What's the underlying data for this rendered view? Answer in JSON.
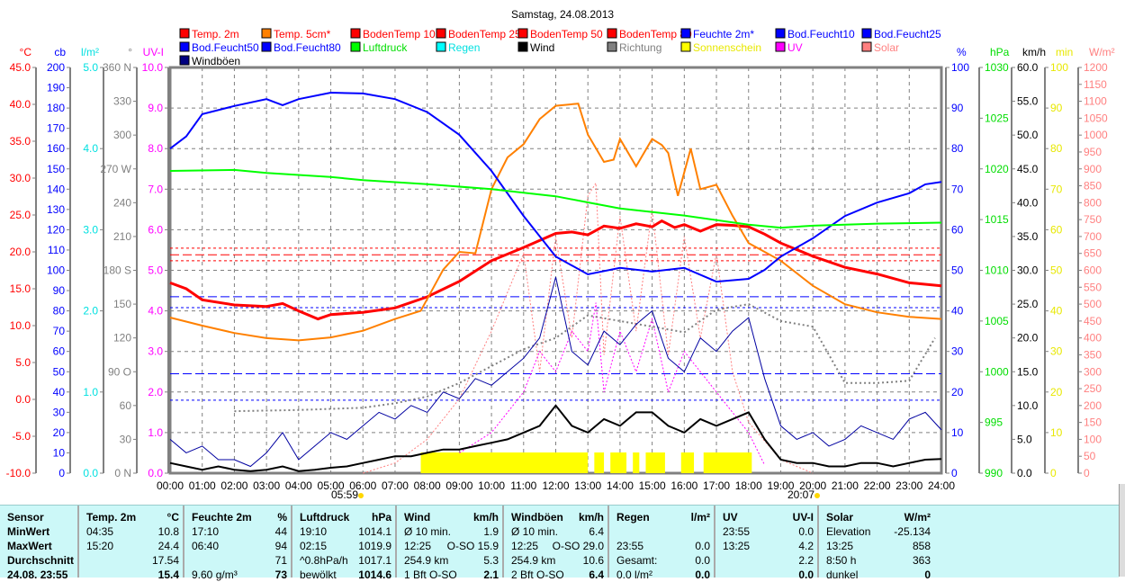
{
  "chart_data": {
    "type": "line",
    "title": "Samstag, 24.08.2013",
    "x_ticks": [
      "00:00",
      "01:00",
      "02:00",
      "03:00",
      "04:00",
      "05:00",
      "06:00",
      "07:00",
      "08:00",
      "09:00",
      "10:00",
      "11:00",
      "12:00",
      "13:00",
      "14:00",
      "15:00",
      "16:00",
      "17:00",
      "18:00",
      "19:00",
      "20:00",
      "21:00",
      "22:00",
      "23:00",
      "24:00"
    ],
    "sunrise": "05:59",
    "sunset": "20:07",
    "legend": [
      {
        "label": "Temp. 2m",
        "color": "#ff0000",
        "text": "#ff0000"
      },
      {
        "label": "Temp. 5cm*",
        "color": "#ff8000",
        "text": "#ff0000"
      },
      {
        "label": "BodenTemp 10",
        "color": "#ff0000",
        "text": "#ff0000"
      },
      {
        "label": "BodenTemp 25",
        "color": "#ff0000",
        "text": "#ff0000"
      },
      {
        "label": "BodenTemp 50",
        "color": "#ff0000",
        "text": "#ff0000"
      },
      {
        "label": "BodenTemp 80",
        "color": "#ff0000",
        "text": "#ff0000"
      },
      {
        "label": "Feuchte 2m*",
        "color": "#0000ff",
        "text": "#0000ff"
      },
      {
        "label": "Bod.Feucht10",
        "color": "#0000ff",
        "text": "#0000ff"
      },
      {
        "label": "Bod.Feucht25",
        "color": "#0000ff",
        "text": "#0000ff"
      },
      {
        "label": "Bod.Feucht50",
        "color": "#0000ff",
        "text": "#0000ff"
      },
      {
        "label": "Bod.Feucht80",
        "color": "#0000ff",
        "text": "#0000ff"
      },
      {
        "label": "Luftdruck",
        "color": "#00ff00",
        "text": "#00dd00"
      },
      {
        "label": "Regen",
        "color": "#00ffff",
        "text": "#00e0e0"
      },
      {
        "label": "Wind",
        "color": "#000000",
        "text": "#000000"
      },
      {
        "label": "Richtung",
        "color": "#808080",
        "text": "#808080"
      },
      {
        "label": "Sonnenschein",
        "color": "#ffff00",
        "text": "#e8e800"
      },
      {
        "label": "UV",
        "color": "#ff00ff",
        "text": "#ff00ff"
      },
      {
        "label": "Solar",
        "color": "#ff8080",
        "text": "#ff8080"
      },
      {
        "label": "Windböen",
        "color": "#000080",
        "text": "#000000"
      }
    ],
    "axes_left": [
      {
        "unit": "°C",
        "color": "#ff0000",
        "min": -10,
        "max": 45,
        "ticks": [
          "45.0",
          "40.0",
          "35.0",
          "30.0",
          "25.0",
          "20.0",
          "15.0",
          "10.0",
          "5.0",
          "0.0",
          "-5.0",
          "-10.0"
        ]
      },
      {
        "unit": "cb",
        "color": "#0000ff",
        "min": 0,
        "max": 200,
        "ticks": [
          "200",
          "190",
          "180",
          "170",
          "160",
          "150",
          "140",
          "130",
          "120",
          "110",
          "100",
          "90",
          "80",
          "70",
          "60",
          "50",
          "40",
          "30",
          "20",
          "10",
          "0"
        ]
      },
      {
        "unit": "l/m²",
        "color": "#00e0e0",
        "min": 0,
        "max": 5,
        "ticks": [
          "5.0",
          "4.0",
          "3.0",
          "2.0",
          "1.0",
          "0.0"
        ]
      },
      {
        "unit": "°",
        "color": "#808080",
        "min": 0,
        "max": 360,
        "ticks": [
          "360 N",
          "330",
          "300",
          "270 W",
          "240",
          "210",
          "180 S",
          "150",
          "120",
          "90  O",
          "60",
          "30",
          "0  N"
        ]
      },
      {
        "unit": "UV-I",
        "color": "#ff00ff",
        "min": 0,
        "max": 10,
        "ticks": [
          "10.0",
          "9.0",
          "8.0",
          "7.0",
          "6.0",
          "5.0",
          "4.0",
          "3.0",
          "2.0",
          "1.0",
          "0.0"
        ]
      }
    ],
    "axes_right": [
      {
        "unit": "%",
        "color": "#0000ff",
        "min": 0,
        "max": 100,
        "ticks": [
          "100",
          "90",
          "80",
          "70",
          "60",
          "50",
          "40",
          "30",
          "20",
          "10",
          "0"
        ]
      },
      {
        "unit": "hPa",
        "color": "#00dd00",
        "min": 990,
        "max": 1030,
        "ticks": [
          "1030",
          "1025",
          "1020",
          "1015",
          "1010",
          "1005",
          "1000",
          "995",
          "990"
        ]
      },
      {
        "unit": "km/h",
        "color": "#000000",
        "min": 0,
        "max": 60,
        "ticks": [
          "60.0",
          "55.0",
          "50.0",
          "45.0",
          "40.0",
          "35.0",
          "30.0",
          "25.0",
          "20.0",
          "15.0",
          "10.0",
          "5.0",
          "0.0"
        ]
      },
      {
        "unit": "min",
        "color": "#e8e800",
        "min": 0,
        "max": 100,
        "ticks": [
          "100",
          "90",
          "80",
          "70",
          "60",
          "50",
          "40",
          "30",
          "20",
          "10",
          "0"
        ]
      },
      {
        "unit": "W/m²",
        "color": "#ff8080",
        "min": 0,
        "max": 1200,
        "ticks": [
          "1200",
          "1150",
          "1100",
          "1050",
          "1000",
          "950",
          "900",
          "850",
          "800",
          "750",
          "700",
          "650",
          "600",
          "550",
          "500",
          "450",
          "400",
          "350",
          "300",
          "250",
          "200",
          "150",
          "100",
          "50",
          "0"
        ]
      }
    ],
    "series": [
      {
        "name": "Temp. 2m",
        "axis": "°C",
        "color": "#ff0000",
        "width": 3,
        "x": [
          0,
          0.5,
          1,
          2,
          3,
          3.5,
          4,
          4.6,
          5,
          6,
          7,
          8,
          9,
          10,
          11,
          12,
          12.5,
          13,
          13.5,
          14,
          14.5,
          15,
          15.3,
          15.7,
          16,
          16.5,
          17,
          17.5,
          18,
          18.5,
          19,
          20,
          21,
          22,
          23,
          24
        ],
        "y": [
          15.8,
          15,
          13.5,
          12.8,
          12.6,
          13,
          12,
          10.9,
          11.5,
          11.8,
          12.4,
          13.9,
          16,
          18.8,
          20.6,
          22.5,
          22.7,
          22.3,
          23.5,
          23.2,
          23.8,
          23.4,
          24.2,
          23.3,
          23.7,
          22.8,
          23.7,
          23.6,
          23.4,
          22.4,
          21.2,
          19.4,
          17.9,
          17,
          15.8,
          15.4
        ]
      },
      {
        "name": "Temp. 5cm*",
        "axis": "°C",
        "color": "#ff8000",
        "width": 2,
        "x": [
          0,
          1,
          2,
          3,
          4,
          5,
          6,
          7,
          7.8,
          8.5,
          9,
          9.5,
          10,
          10.5,
          11,
          11.5,
          12,
          12.7,
          13,
          13.5,
          13.8,
          14,
          14.5,
          15,
          15.3,
          15.5,
          15.8,
          16.2,
          16.5,
          17,
          17.5,
          18,
          19,
          20,
          21,
          22,
          23,
          24
        ],
        "y": [
          11.1,
          10,
          9,
          8.3,
          8,
          8.4,
          9.3,
          10.9,
          12,
          17.6,
          20,
          19.8,
          28.5,
          32.8,
          34.6,
          38,
          39.8,
          40.1,
          35.9,
          32.2,
          32.5,
          35.3,
          31.6,
          35.3,
          34.5,
          33.4,
          27.6,
          34,
          28.5,
          29.1,
          24.9,
          21.2,
          18.8,
          15.4,
          12.9,
          11.8,
          11.2,
          10.9
        ]
      },
      {
        "name": "Feuchte 2m*",
        "axis": "%",
        "color": "#0000ff",
        "width": 2,
        "x": [
          0,
          0.5,
          1,
          2,
          3,
          3.5,
          4,
          5,
          6,
          7,
          8,
          9,
          10,
          11,
          12,
          13,
          14,
          15,
          16,
          17,
          18,
          18.5,
          19,
          20,
          21,
          22,
          23,
          23.5,
          24
        ],
        "y": [
          80,
          83,
          88.5,
          90.5,
          92.2,
          90.7,
          92.2,
          93.8,
          93.6,
          92.2,
          89,
          83.4,
          74.5,
          63.4,
          53.4,
          49,
          50.6,
          49.7,
          50.6,
          47.2,
          47.9,
          50.1,
          53.4,
          57.9,
          63.4,
          66.7,
          69,
          71.2,
          71.8
        ]
      },
      {
        "name": "Luftdruck",
        "axis": "hPa",
        "color": "#00ff00",
        "width": 2,
        "x": [
          0,
          2,
          3,
          5,
          6,
          8,
          10,
          12,
          13,
          14,
          16,
          18,
          19,
          20,
          21,
          22,
          24
        ],
        "y": [
          1019.8,
          1019.9,
          1019.6,
          1019.2,
          1018.9,
          1018.5,
          1018,
          1017.3,
          1016.7,
          1016.1,
          1015.4,
          1014.5,
          1014.2,
          1014.4,
          1014.5,
          1014.6,
          1014.7
        ]
      }
    ],
    "wind_kmh": [
      1.5,
      1,
      0.5,
      1,
      0.5,
      0.3,
      0.5,
      1,
      0.3,
      0.5,
      0.8,
      1,
      1.5,
      2,
      2.5,
      2.5,
      3,
      3.5,
      3.5,
      4,
      4.5,
      5,
      6,
      7,
      10,
      7,
      6,
      8,
      7,
      9,
      9,
      7,
      6,
      8,
      7,
      8,
      9,
      5,
      2,
      1.5,
      1.5,
      1,
      1,
      1.5,
      1.5,
      1,
      1.5,
      2,
      2.1
    ],
    "gust_kmh": [
      5,
      3,
      4,
      2,
      2,
      1,
      3,
      6,
      2,
      4,
      6,
      5,
      7,
      9,
      8,
      10,
      9,
      12,
      11,
      14,
      13,
      15,
      17,
      20,
      29,
      18,
      16,
      21,
      19,
      22,
      24,
      17,
      15,
      20,
      18,
      21,
      23,
      14,
      7,
      5,
      6,
      4,
      5,
      7,
      6,
      5,
      8,
      9,
      6.4
    ],
    "direction_deg": {
      "x": [
        2,
        4,
        6,
        7,
        8,
        9,
        10,
        11,
        12,
        13,
        14,
        15,
        16,
        17,
        18,
        19,
        20,
        21,
        22,
        23,
        23.8
      ],
      "y": [
        55,
        56,
        58,
        62,
        68,
        80,
        95,
        110,
        120,
        140,
        135,
        130,
        125,
        145,
        150,
        135,
        130,
        80,
        80,
        82,
        120
      ]
    },
    "uv_index": {
      "x": [
        9,
        10,
        11,
        11.5,
        12,
        12.5,
        13,
        13.25,
        13.5,
        14,
        14.5,
        15,
        15.5,
        16,
        16.5,
        17,
        17.5,
        18,
        18.5
      ],
      "y": [
        0.5,
        1,
        2,
        3,
        2.5,
        3.5,
        3,
        4.2,
        2,
        3.5,
        2.5,
        3.8,
        2,
        3,
        2.5,
        2,
        1.5,
        1,
        0.2
      ]
    },
    "solar_wm2": {
      "x": [
        6,
        7,
        8,
        9,
        10,
        11,
        11.5,
        12,
        12.5,
        13,
        13.25,
        13.5,
        14,
        14.5,
        15,
        15.5,
        16,
        16.5,
        17,
        17.5,
        18,
        19,
        20
      ],
      "y": [
        0,
        30,
        100,
        220,
        420,
        650,
        300,
        700,
        400,
        820,
        858,
        350,
        760,
        420,
        780,
        350,
        700,
        400,
        650,
        300,
        150,
        40,
        0
      ]
    },
    "sunshine_segments": [
      [
        7.8,
        13.0
      ],
      [
        13.2,
        13.5
      ],
      [
        13.7,
        14.2
      ],
      [
        14.4,
        14.6
      ],
      [
        14.8,
        15.4
      ],
      [
        15.9,
        16.3
      ],
      [
        16.6,
        18.1
      ]
    ],
    "reference_lines": [
      {
        "name": "BodenTemp 10",
        "axis": "°C",
        "value": 20.5,
        "color": "#ff0000"
      },
      {
        "name": "BodenTemp 25",
        "axis": "°C",
        "value": 19.6,
        "color": "#ff0000"
      },
      {
        "name": "BodenTemp 50",
        "axis": "°C",
        "value": 18.8,
        "color": "#ff0000"
      },
      {
        "name": "Bod.Feucht10",
        "axis": "cb",
        "value": 87,
        "color": "#0000ff"
      },
      {
        "name": "Bod.Feucht25",
        "axis": "cb",
        "value": 81.6,
        "color": "#0000ff"
      },
      {
        "name": "Bod.Feucht50",
        "axis": "cb",
        "value": 49,
        "color": "#0000ff"
      },
      {
        "name": "Bod.Feucht80",
        "axis": "cb",
        "value": 36,
        "color": "#0000ff"
      }
    ]
  },
  "table": {
    "headers": [
      [
        "Sensor",
        ""
      ],
      [
        "Temp. 2m",
        "°C"
      ],
      [
        "Feuchte 2m",
        "%"
      ],
      [
        "Luftdruck",
        "hPa"
      ],
      [
        "Wind",
        "km/h"
      ],
      [
        "Windböen",
        "km/h"
      ],
      [
        "Regen",
        "l/m²"
      ],
      [
        "UV",
        "UV-I"
      ],
      [
        "Solar",
        "W/m²"
      ]
    ],
    "rows": [
      {
        "label": "MinWert",
        "cells": [
          [
            "04:35",
            "10.8"
          ],
          [
            "17:10",
            "44"
          ],
          [
            "19:10",
            "1014.1"
          ],
          [
            "Ø 10 min.",
            "1.9"
          ],
          [
            "Ø 10 min.",
            "6.4"
          ],
          [
            "",
            ""
          ],
          [
            "23:55",
            "0.0"
          ],
          [
            "Elevation",
            "-25.134"
          ]
        ]
      },
      {
        "label": "MaxWert",
        "cells": [
          [
            "15:20",
            "24.4"
          ],
          [
            "06:40",
            "94"
          ],
          [
            "02:15",
            "1019.9"
          ],
          [
            "12:25",
            "O-SO 15.9"
          ],
          [
            "12:25",
            "O-SO 29.0"
          ],
          [
            "23:55",
            "0.0"
          ],
          [
            "13:25",
            "4.2"
          ],
          [
            "13:25",
            "858"
          ]
        ]
      },
      {
        "label": "Durchschnitt",
        "cells": [
          [
            "",
            "17.54"
          ],
          [
            "",
            "71"
          ],
          [
            "^0.8hPa/h",
            "1017.1"
          ],
          [
            "254.9 km",
            "5.3"
          ],
          [
            "254.9 km",
            "10.6"
          ],
          [
            "Gesamt:",
            "0.0"
          ],
          [
            "",
            "2.2"
          ],
          [
            "8:50 h",
            "363"
          ]
        ]
      },
      {
        "label": "24.08. 23:55",
        "cells": [
          [
            "",
            "15.4"
          ],
          [
            "9.60 g/m³",
            "73"
          ],
          [
            "bewölkt",
            "1014.6"
          ],
          [
            "1 Bft O-SO",
            "2.1"
          ],
          [
            "2 Bft O-SO",
            "6.4"
          ],
          [
            "0.0 l/m²",
            "0.0"
          ],
          [
            "",
            "0.0"
          ],
          [
            "dunkel",
            "0"
          ]
        ]
      }
    ]
  }
}
